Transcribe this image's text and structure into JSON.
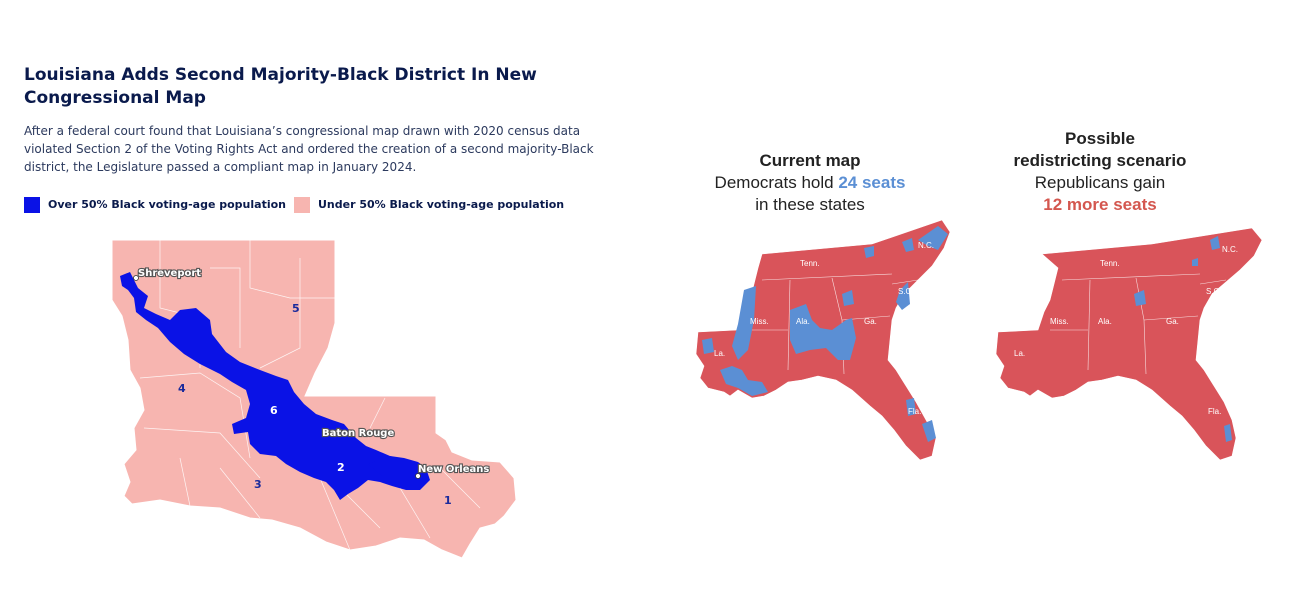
{
  "left": {
    "title": "Louisiana Adds Second Majority-Black District In New Congressional Map",
    "subtitle": "After a federal court found that Louisiana’s congressional map drawn with 2020 census data violated Section 2 of the Voting Rights Act and ordered the creation of a second majority-Black district, the Legislature passed a compliant map in January 2024.",
    "legend": [
      {
        "label": "Over 50% Black voting-age population",
        "color": "#0a12e6"
      },
      {
        "label": "Under 50% Black voting-age population",
        "color": "#f7b5b0"
      }
    ],
    "cities": [
      "Shreveport",
      "Baton Rouge",
      "New Orleans"
    ],
    "districts": [
      "1",
      "2",
      "3",
      "4",
      "5",
      "6"
    ]
  },
  "right": {
    "current": {
      "title": "Current map",
      "desc_pre": "Democrats hold ",
      "desc_highlight": "24 seats",
      "desc_post": "in these states"
    },
    "scenario": {
      "title_line1": "Possible",
      "title_line2": "redistricting scenario",
      "desc": "Republicans gain",
      "desc_highlight": "12 more seats"
    },
    "state_labels": [
      "Tenn.",
      "N.C.",
      "S.C.",
      "Miss.",
      "Ala.",
      "Ga.",
      "La.",
      "Fla."
    ],
    "colors": {
      "republican": "#d9545a",
      "democrat": "#5b8fd4"
    }
  }
}
